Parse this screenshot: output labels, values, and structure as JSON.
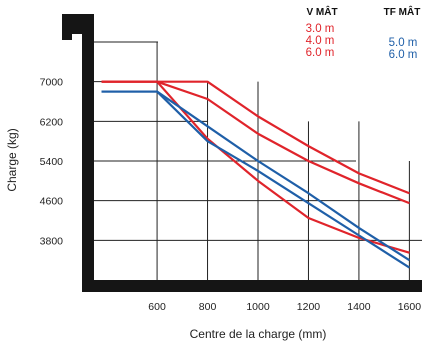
{
  "chart_data": {
    "type": "line",
    "xlabel": "Centre de la charge (mm)",
    "ylabel": "Charge (kg)",
    "x_ticks": [
      "600",
      "800",
      "1000",
      "1200",
      "1400",
      "1600"
    ],
    "y_ticks": [
      "3800",
      "4600",
      "5400",
      "6200",
      "7000"
    ],
    "xlim": [
      350,
      1650
    ],
    "ylim": [
      3000,
      7800
    ],
    "grid": true,
    "legend": {
      "groups": [
        {
          "title": "V MÂT",
          "color": "#e0242b",
          "items": [
            "3.0 m",
            "4.0 m",
            "6.0 m"
          ]
        },
        {
          "title": "TF MÂT",
          "color": "#1f5fa8",
          "items": [
            "5.0 m",
            "6.0 m"
          ]
        }
      ]
    },
    "series": [
      {
        "group": "V MÂT",
        "label": "3.0 m",
        "color": "#e0242b",
        "x": [
          380,
          600,
          800,
          1000,
          1200,
          1400,
          1600
        ],
        "y": [
          7000,
          7000,
          7000,
          6300,
          5700,
          5150,
          4750
        ]
      },
      {
        "group": "V MÂT",
        "label": "4.0 m",
        "color": "#e0242b",
        "x": [
          380,
          600,
          800,
          1000,
          1200,
          1400,
          1600
        ],
        "y": [
          7000,
          7000,
          6650,
          5950,
          5400,
          4950,
          4550
        ]
      },
      {
        "group": "V MÂT",
        "label": "6.0 m",
        "color": "#e0242b",
        "x": [
          380,
          600,
          800,
          1000,
          1200,
          1400,
          1600
        ],
        "y": [
          7000,
          7000,
          5850,
          5000,
          4250,
          3850,
          3550
        ]
      },
      {
        "group": "TF MÂT",
        "label": "5.0 m",
        "color": "#1f5fa8",
        "x": [
          380,
          600,
          800,
          1000,
          1200,
          1400,
          1600
        ],
        "y": [
          6800,
          6800,
          6100,
          5400,
          4750,
          4050,
          3400
        ]
      },
      {
        "group": "TF MÂT",
        "label": "6.0 m",
        "color": "#1f5fa8",
        "x": [
          380,
          600,
          800,
          1000,
          1200,
          1400,
          1600
        ],
        "y": [
          6800,
          6800,
          5800,
          5200,
          4550,
          3900,
          3250
        ]
      }
    ]
  }
}
